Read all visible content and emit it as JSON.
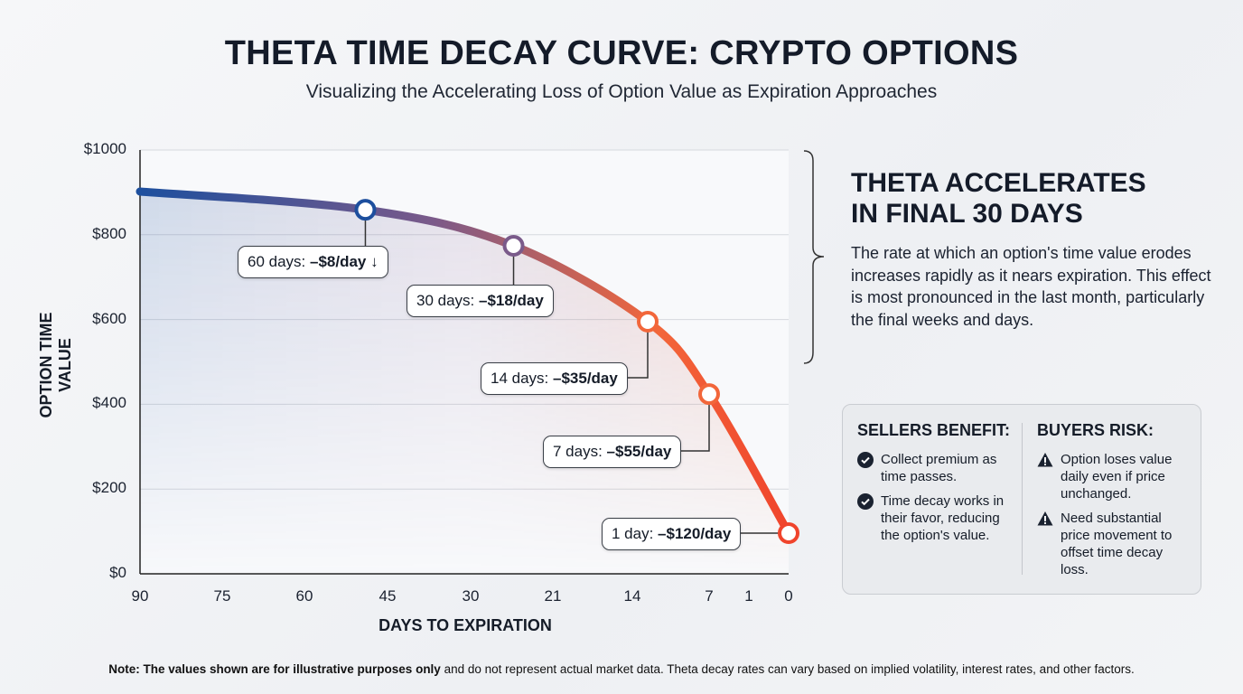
{
  "chart_data": {
    "type": "line",
    "title": "THETA TIME DECAY CURVE: CRYPTO OPTIONS",
    "subtitle": "Visualizing the Accelerating Loss of Option Value as Expiration Approaches",
    "xlabel": "DAYS TO EXPIRATION",
    "ylabel": "OPTION TIME VALUE",
    "x_ticks": [
      "90",
      "75",
      "60",
      "45",
      "30",
      "21",
      "14",
      "7",
      "1",
      "0"
    ],
    "y_ticks": [
      "$0",
      "$200",
      "$400",
      "$600",
      "$800",
      "$1000"
    ],
    "ylim": [
      0,
      1000
    ],
    "xlim": [
      90,
      0
    ],
    "grid": "horizontal",
    "curve": [
      {
        "days": 90,
        "value": 902
      },
      {
        "days": 49,
        "value": 859
      },
      {
        "days": 25.3,
        "value": 774
      },
      {
        "days": 12.6,
        "value": 595
      },
      {
        "days": 7,
        "value": 424
      },
      {
        "days": 0,
        "value": 96
      }
    ],
    "markers": [
      {
        "days": 49,
        "value": 859,
        "prefix": "60 days: ",
        "rate": "–$8/day",
        "suffix": " ↓"
      },
      {
        "days": 25.3,
        "value": 774,
        "prefix": "30 days: ",
        "rate": "–$18/day",
        "suffix": ""
      },
      {
        "days": 12.6,
        "value": 595,
        "prefix": "14 days: ",
        "rate": "–$35/day",
        "suffix": ""
      },
      {
        "days": 7,
        "value": 424,
        "prefix": "7 days: ",
        "rate": "–$55/day",
        "suffix": ""
      },
      {
        "days": 0,
        "value": 96,
        "prefix": "1 day: ",
        "rate": "–$120/day",
        "suffix": ""
      }
    ],
    "colors": {
      "start": "#1d4f9e",
      "mid": "#7a5a8a",
      "end": "#f0442c"
    }
  },
  "side": {
    "heading_line1": "THETA ACCELERATES",
    "heading_line2": "IN FINAL 30 DAYS",
    "paragraph": "The rate at which an option's time value erodes increases rapidly as it nears expiration. This effect is most pronounced in the last month, particularly the final weeks and days."
  },
  "sellers": {
    "title": "SELLERS BENEFIT:",
    "icon": "check-circle-icon",
    "items": [
      "Collect premium as time passes.",
      "Time decay works in their favor, reducing the option's value."
    ]
  },
  "buyers": {
    "title": "BUYERS RISK:",
    "icon": "warning-icon",
    "items": [
      "Option loses value daily even if price unchanged.",
      "Need substantial price movement to offset time decay loss."
    ]
  },
  "note": {
    "bold": "Note: The values shown are for illustrative purposes only",
    "rest": " and do not represent actual market data. Theta decay rates can vary based on implied volatility, interest rates, and other factors."
  }
}
